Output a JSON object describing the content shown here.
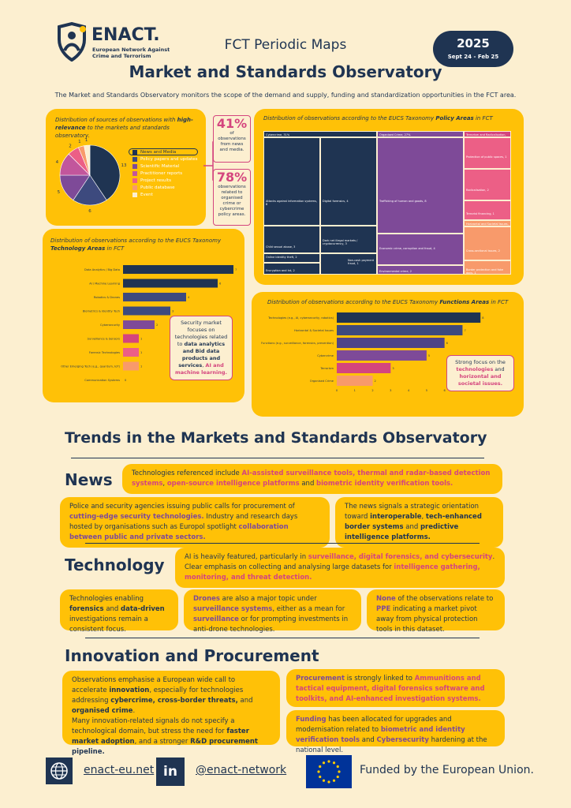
{
  "header": {
    "logo_name": "ENACT.",
    "logo_sub1": "European Network Against",
    "logo_sub2": "Crime and Terrorism",
    "subtitle": "FCT Periodic Maps",
    "title": "Market and Standards Observatory",
    "year": "2025",
    "period": "Sept 24 - Feb 25",
    "intro": "The Market and Standards Observatory monitors the scope of the demand and supply, funding and standardization opportunities in the FCT area."
  },
  "sources_card": {
    "caption_a": "Distribution of  sources of observations with ",
    "caption_b": "high-relevance",
    "caption_c": " to the markets and standards observatory.",
    "legend": [
      "News and Media",
      "Policy papers and updates",
      "Scientific Material",
      "Practitioner reports",
      "Project results",
      "Public database",
      "Event"
    ],
    "pie_labels": [
      "13",
      "6",
      "5",
      "4",
      "2",
      "1",
      "1"
    ]
  },
  "stats": {
    "s1_value": "41%",
    "s1_text": "of observations from news and media.",
    "s2_value": "78%",
    "s2_text": "observations related to organised crime or cybercrime policy areas."
  },
  "policy_card": {
    "caption_a": "Distribution of observations according to the EUCS Taxonomy ",
    "caption_b": "Policy Areas",
    "caption_c": " in FCT",
    "cells": [
      "Cybercrime, 31%",
      "Attacks against information systems, 8",
      "Digital forensics, 4",
      "Child sexual abuse, 3",
      "Dark net illegal markets / cryptocurrency, 3",
      "Online identity theft, 2",
      "Encryption and Int, 2",
      "Non-cash payment fraud, 1",
      "Organised Crime, 27%",
      "Trafficking of human and goods, 8",
      "Economic crime, corruption and fraud, 4",
      "Environmental crime, 2",
      "Terrorism and Radicalisation, 14%",
      "Protection of public spaces, 1",
      "Radicalisation, 2",
      "Terrorist financing, 1",
      "Horizontal and Societal Issues, 9%",
      "Cross-sectional issues, 2",
      "Border protection and fake docs, 1"
    ]
  },
  "tech_card": {
    "caption_a": "Distribution of observations according to the EUCS Taxonomy ",
    "caption_b": "Technology Areas",
    "caption_c": " in FCT",
    "note_a": "Security market focuses on technologies related to ",
    "note_b": "data analytics and Bid data products and services",
    "note_c": ", ",
    "note_d": "AI and machine learning."
  },
  "func_card": {
    "caption_a": "Distribution of observations according to the EUCS Taxonomy ",
    "caption_b": "Functions Areas",
    "caption_c": " in FCT",
    "note_a": "Strong focus on the ",
    "note_b": "technologies",
    "note_c": " and ",
    "note_d": "horizontal and societal issues."
  },
  "chart_data": [
    {
      "type": "pie",
      "categories": [
        "News and Media",
        "Policy papers and updates",
        "Scientific Material",
        "Practitioner reports",
        "Project results",
        "Public database",
        "Event"
      ],
      "values": [
        13,
        6,
        5,
        4,
        2,
        1,
        1
      ],
      "colors": [
        "#1F3452",
        "#3D4A7E",
        "#7E4A98",
        "#C2569C",
        "#EC5F86",
        "#F89A6B",
        "#FCEFD0"
      ]
    },
    {
      "type": "bar",
      "orientation": "horizontal",
      "categories": [
        "Data Analytics / Big Data",
        "AI / Machine Learning",
        "Robotics & Drones",
        "Biometrics & Identity Tech",
        "Cybersecurity",
        "Surveillance & Sensors",
        "Forensic Technologies",
        "Other Emerging Tech (e.g., quantum, IoT)",
        "Communication Systems"
      ],
      "values": [
        7,
        6,
        4,
        3,
        2,
        1,
        1,
        1,
        0
      ],
      "colors": [
        "#1F3452",
        "#1F3452",
        "#3D4A7E",
        "#3D4A7E",
        "#7E4A98",
        "#D4457E",
        "#EC5F86",
        "#F89A6B",
        "#FCEFD0"
      ],
      "xlim": [
        0,
        7
      ],
      "xticks": [
        "0",
        "1",
        "2",
        "3",
        "4",
        "5",
        "6",
        "7"
      ]
    },
    {
      "type": "bar",
      "orientation": "horizontal",
      "categories": [
        "Technologies (e.g., AI, cybersecurity, robotics)",
        "Horizontal & Societal Issues",
        "Functions (e.g., surveillance, forensics, prevention)",
        "Cybercrime",
        "Terrorism",
        "Organised Crime"
      ],
      "values": [
        8,
        7,
        6,
        5,
        3,
        2
      ],
      "colors": [
        "#1F3452",
        "#3D4A7E",
        "#4F4487",
        "#7E4A98",
        "#D4457E",
        "#F89A6B"
      ],
      "xlim": [
        0,
        9
      ],
      "xticks": [
        "0",
        "1",
        "2",
        "3",
        "4",
        "5",
        "6",
        "7",
        "8",
        "9"
      ]
    }
  ],
  "trends_title": "Trends in the Markets and Standards Observatory",
  "news": {
    "heading": "News",
    "p1_a": "Technologies referenced include ",
    "p1_b": "AI-assisted surveillance tools, thermal and radar-based detection systems",
    "p1_c": ", ",
    "p1_d": "open-source intelligence platforms",
    "p1_e": " and ",
    "p1_f": "biometric identity verification tools.",
    "p2_a": "Police and security agencies issuing public calls for procurement of ",
    "p2_b": "cutting-edge security technologies.",
    "p2_c": " Industry and research days hosted by organisations such as Europol spotlight ",
    "p2_d": "collaboration between public and private sectors.",
    "p3_a": "The news signals a strategic orientation toward ",
    "p3_b": "interoperable",
    "p3_c": ", ",
    "p3_d": "tech-enhanced border systems",
    "p3_e": " and ",
    "p3_f": "predictive intelligence platforms."
  },
  "technology": {
    "heading": "Technology",
    "p1_a": "AI is heavily featured, particularly in ",
    "p1_b": "surveillance, digital forensics, and cybersecurity",
    "p1_c": ".  Clear emphasis on collecting and analysing large datasets for ",
    "p1_d": "intelligence gathering, monitoring, and threat detection.",
    "p2_a": "Technologies enabling ",
    "p2_b": "forensics",
    "p2_c": " and ",
    "p2_d": "data-driven",
    "p2_e": " investigations remain a consistent focus.",
    "p3_a": "Drones",
    "p3_b": " are also a major topic under ",
    "p3_c": "surveillance systems",
    "p3_d": ", either as a mean for ",
    "p3_e": "surveillance",
    "p3_f": " or for prompting investments in anti-drone technologies.",
    "p4_a": "None",
    "p4_b": " of the observations relate to ",
    "p4_c": "PPE",
    "p4_d": " indicating a market pivot away from physical protection tools in this dataset."
  },
  "innovation": {
    "heading": "Innovation and Procurement",
    "p1_a": "Observations emphasise a European wide call to accelerate ",
    "p1_b": "innovation",
    "p1_c": ", especially for technologies addressing ",
    "p1_d": "cybercrime, cross-border threats,",
    "p1_e": " and ",
    "p1_f": "organised crime",
    "p1_g": ".",
    "p1_h": "Many innovation-related signals do not specify a technological domain, but stress the need for ",
    "p1_i": "faster market adoption",
    "p1_j": ", and a stronger ",
    "p1_k": "R&D procurement pipeline.",
    "p2_a": "Procurement",
    "p2_b": " is strongly linked to  ",
    "p2_c": "Ammunitions and tactical equipment, digital forensics software and toolkits, and AI-enhanced investigation systems.",
    "p3_a": "Funding",
    "p3_b": " has been allocated for upgrades and modernisation related to ",
    "p3_c": "biometric and identity verification tools",
    "p3_d": " and ",
    "p3_e": "Cybersecurity",
    "p3_f": " hardening at the national level."
  },
  "footer": {
    "website": "enact-eu.net",
    "social": "@enact-network",
    "funded": "Funded by the European Union.",
    "linkedin_glyph": "in"
  },
  "colors": {
    "navy": "#1F3452",
    "yellow": "#FFC107",
    "cream": "#FCEFD0",
    "pink": "#D4457E",
    "purple": "#7E4A98"
  }
}
